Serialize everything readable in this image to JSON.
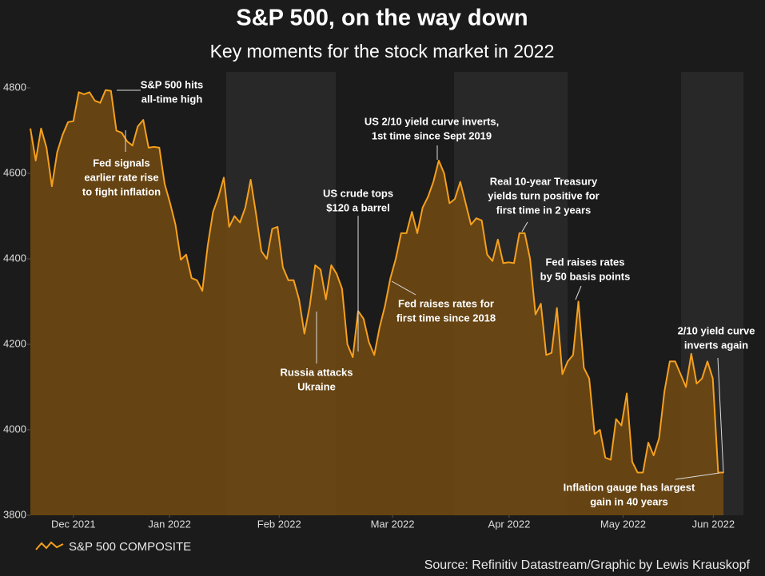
{
  "chart_data": {
    "type": "area",
    "title": "S&P 500, on the way down",
    "subtitle": "Key moments for the stock market in 2022",
    "source": "Source: Refinitiv Datastream/Graphic by Lewis Krauskopf",
    "series": [
      {
        "name": "S&P 500 COMPOSITE",
        "color": "#f5a01e",
        "fill": "#6e4812",
        "values": [
          4705,
          4630,
          4705,
          4660,
          4570,
          4650,
          4690,
          4720,
          4722,
          4790,
          4785,
          4790,
          4770,
          4765,
          4795,
          4793,
          4700,
          4695,
          4675,
          4665,
          4710,
          4725,
          4660,
          4662,
          4660,
          4575,
          4530,
          4480,
          4398,
          4410,
          4355,
          4350,
          4325,
          4430,
          4510,
          4545,
          4590,
          4475,
          4500,
          4485,
          4520,
          4585,
          4505,
          4418,
          4400,
          4470,
          4475,
          4380,
          4350,
          4350,
          4305,
          4225,
          4290,
          4385,
          4375,
          4305,
          4385,
          4365,
          4330,
          4200,
          4170,
          4278,
          4260,
          4205,
          4175,
          4240,
          4290,
          4355,
          4400,
          4460,
          4460,
          4510,
          4460,
          4520,
          4545,
          4580,
          4630,
          4600,
          4530,
          4540,
          4580,
          4530,
          4480,
          4495,
          4490,
          4410,
          4395,
          4445,
          4390,
          4392,
          4390,
          4460,
          4460,
          4400,
          4270,
          4295,
          4175,
          4180,
          4285,
          4130,
          4160,
          4175,
          4300,
          4145,
          4120,
          3990,
          4000,
          3935,
          3930,
          4025,
          4010,
          4085,
          3925,
          3900,
          3900,
          3970,
          3940,
          3980,
          4090,
          4160,
          4160,
          4130,
          4100,
          4178,
          4108,
          4120,
          4160,
          4120,
          3900,
          3900
        ]
      }
    ],
    "xlim": [
      0,
      132.7
    ],
    "xticks": [
      {
        "value": 8,
        "label": "Dec 2021"
      },
      {
        "value": 25.9,
        "label": "Jan 2022"
      },
      {
        "value": 46.3,
        "label": "Feb 2022"
      },
      {
        "value": 67.4,
        "label": "Mar 2022"
      },
      {
        "value": 89.1,
        "label": "Apr 2022"
      },
      {
        "value": 110.3,
        "label": "May 2022"
      },
      {
        "value": 127.1,
        "label": "Jun 2022"
      }
    ],
    "ylim": [
      3800,
      4800
    ],
    "yticks": [
      3800,
      4000,
      4200,
      4400,
      4600,
      4800
    ],
    "annotations": [
      [
        "S&P 500 hits",
        "all-time high"
      ],
      [
        "Fed signals",
        "earlier rate rise",
        "to fight inflation"
      ],
      [
        "US crude tops",
        "$120 a barrel"
      ],
      [
        "Russia attacks",
        "Ukraine"
      ],
      [
        "US 2/10 yield curve inverts,",
        "1st time since Sept 2019"
      ],
      [
        "Real 10-year Treasury",
        "yields turn positive for",
        "first time in 2 years"
      ],
      [
        "Fed raises rates for",
        "first time since 2018"
      ],
      [
        "Fed raises rates",
        "by 50 basis points"
      ],
      [
        "2/10 yield curve",
        "inverts again"
      ],
      [
        "Inflation gauge has largest",
        "gain in 40 years"
      ]
    ]
  }
}
